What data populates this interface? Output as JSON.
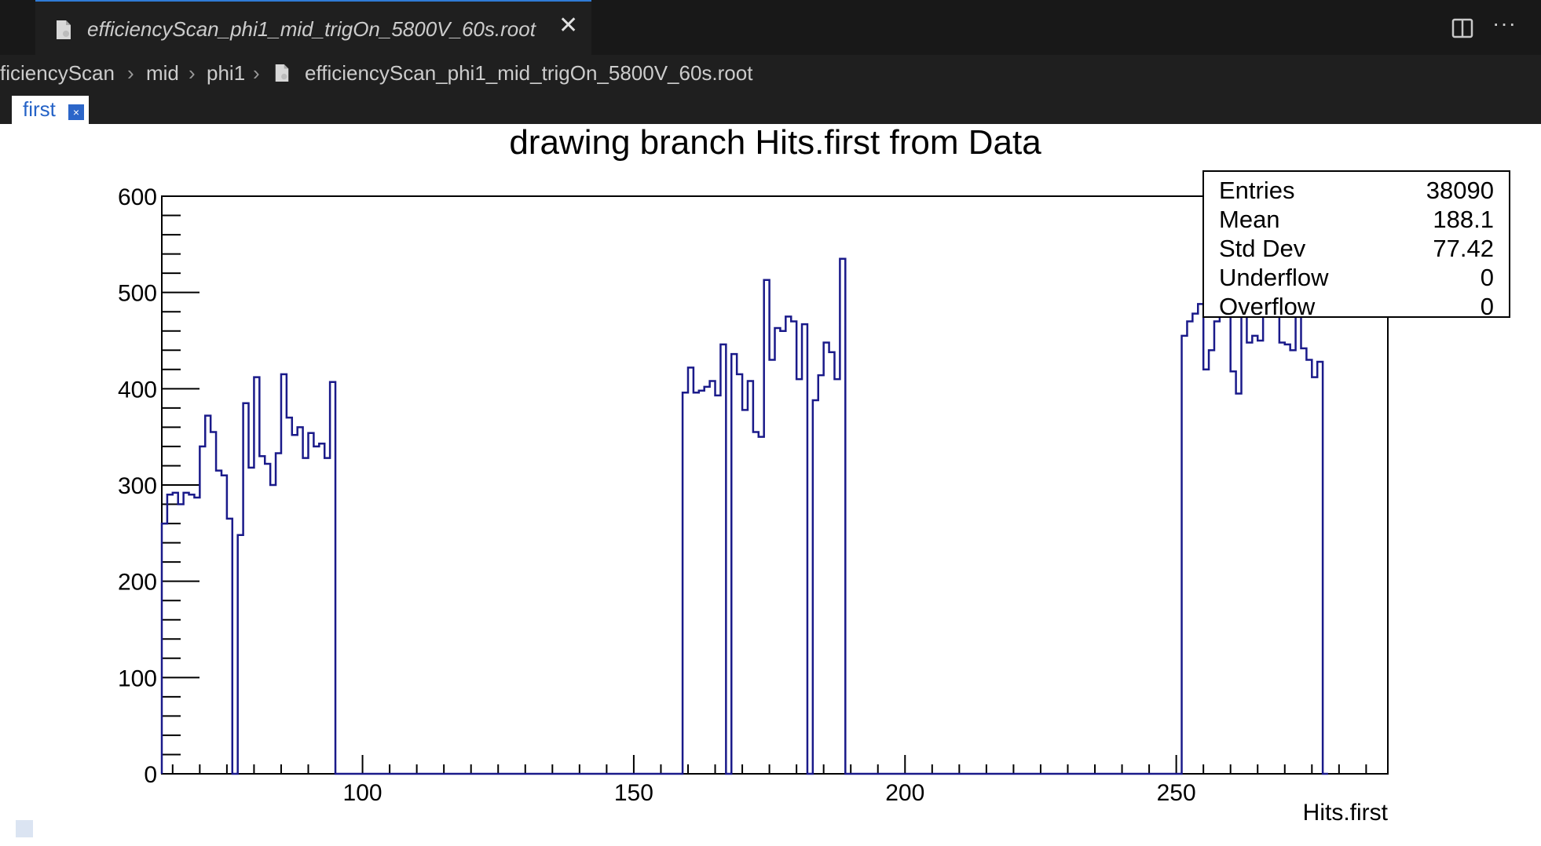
{
  "editor": {
    "tab_title": "efficiencyScan_phi1_mid_trigOn_5800V_60s.root",
    "close_glyph": "✕",
    "more_glyph": "···",
    "breadcrumb": [
      "ficiencyScan",
      "mid",
      "phi1",
      "efficiencyScan_phi1_mid_trigOn_5800V_60s.root"
    ],
    "icons": [
      "file-icon",
      "split-editor-icon",
      "more-actions-icon",
      "chevron-right-icon"
    ],
    "canvas_tab_label": "first",
    "canvas_tab_close": "×"
  },
  "stats": {
    "rows": [
      {
        "label": "Entries",
        "value": "38090"
      },
      {
        "label": "Mean",
        "value": "188.1"
      },
      {
        "label": "Std Dev",
        "value": "77.42"
      },
      {
        "label": "Underflow",
        "value": "0"
      },
      {
        "label": "Overflow",
        "value": "0"
      }
    ]
  },
  "chart_data": {
    "type": "bar",
    "title": "drawing branch Hits.first from Data",
    "xlabel": "Hits.first",
    "ylabel": "",
    "xlim": [
      63,
      289
    ],
    "ylim": [
      0,
      600
    ],
    "xticks": [
      100,
      150,
      200,
      250
    ],
    "yticks": [
      0,
      100,
      200,
      300,
      400,
      500,
      600
    ],
    "grid": false,
    "color": "#1a1a8a",
    "bin_width": 1,
    "bins_start": 63,
    "values": [
      260,
      290,
      292,
      280,
      292,
      290,
      287,
      340,
      372,
      355,
      315,
      310,
      265,
      0,
      248,
      385,
      318,
      412,
      330,
      322,
      300,
      333,
      415,
      370,
      352,
      360,
      328,
      354,
      340,
      343,
      328,
      407,
      0,
      0,
      0,
      0,
      0,
      0,
      0,
      0,
      0,
      0,
      0,
      0,
      0,
      0,
      0,
      0,
      0,
      0,
      0,
      0,
      0,
      0,
      0,
      0,
      0,
      0,
      0,
      0,
      0,
      0,
      0,
      0,
      0,
      0,
      0,
      0,
      0,
      0,
      0,
      0,
      0,
      0,
      0,
      0,
      0,
      0,
      0,
      0,
      0,
      0,
      0,
      0,
      0,
      0,
      0,
      0,
      0,
      0,
      0,
      0,
      0,
      0,
      0,
      0,
      396,
      422,
      396,
      398,
      402,
      408,
      393,
      446,
      0,
      436,
      415,
      378,
      408,
      355,
      350,
      513,
      430,
      463,
      460,
      475,
      470,
      410,
      467,
      0,
      388,
      414,
      448,
      438,
      410,
      535,
      0,
      0,
      0,
      0,
      0,
      0,
      0,
      0,
      0,
      0,
      0,
      0,
      0,
      0,
      0,
      0,
      0,
      0,
      0,
      0,
      0,
      0,
      0,
      0,
      0,
      0,
      0,
      0,
      0,
      0,
      0,
      0,
      0,
      0,
      0,
      0,
      0,
      0,
      0,
      0,
      0,
      0,
      0,
      0,
      0,
      0,
      0,
      0,
      0,
      0,
      0,
      0,
      0,
      0,
      0,
      0,
      0,
      0,
      0,
      0,
      0,
      0,
      455,
      470,
      478,
      488,
      420,
      440,
      470,
      492,
      510,
      418,
      395,
      500,
      448,
      455,
      450,
      500,
      512,
      498,
      448,
      446,
      440,
      476,
      442,
      430,
      412,
      428,
      0
    ]
  }
}
